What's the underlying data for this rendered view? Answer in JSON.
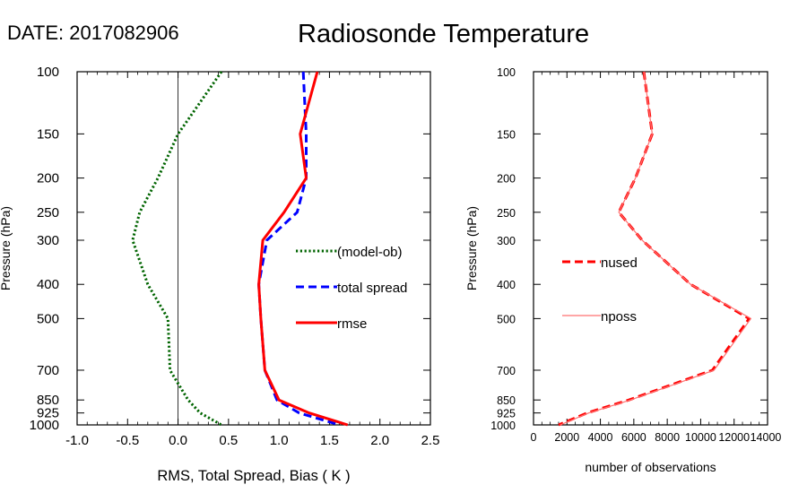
{
  "date_label": "DATE: 2017082906",
  "title": "Radiosonde Temperature",
  "chart_data": [
    {
      "type": "line",
      "xlabel": "RMS, Total Spread, Bias ( K )",
      "ylabel": "Pressure (hPa)",
      "xlim": [
        -1.0,
        2.5
      ],
      "ylim": [
        1000,
        100
      ],
      "y_scale": "log",
      "x_ticks": [
        "-1.0",
        "-0.5",
        "0.0",
        "0.5",
        "1.0",
        "1.5",
        "2.0",
        "2.5"
      ],
      "y_ticks": [
        "100",
        "150",
        "200",
        "250",
        "300",
        "400",
        "500",
        "700",
        "850",
        "925",
        "1000"
      ],
      "zero_line": true,
      "legend_position": "center-right",
      "series": [
        {
          "name": "(model-ob)",
          "color": "#006400",
          "style": "dotted",
          "points": [
            [
              0.43,
              100
            ],
            [
              0.0,
              150
            ],
            [
              -0.2,
              200
            ],
            [
              -0.38,
              250
            ],
            [
              -0.45,
              300
            ],
            [
              -0.3,
              400
            ],
            [
              -0.1,
              500
            ],
            [
              -0.08,
              700
            ],
            [
              0.1,
              850
            ],
            [
              0.22,
              925
            ],
            [
              0.43,
              1000
            ]
          ]
        },
        {
          "name": "total spread",
          "color": "#0000ff",
          "style": "dashed",
          "points": [
            [
              1.24,
              100
            ],
            [
              1.27,
              150
            ],
            [
              1.27,
              200
            ],
            [
              1.18,
              250
            ],
            [
              0.88,
              300
            ],
            [
              0.8,
              400
            ],
            [
              0.82,
              500
            ],
            [
              0.86,
              700
            ],
            [
              0.98,
              850
            ],
            [
              1.2,
              925
            ],
            [
              1.6,
              1000
            ]
          ]
        },
        {
          "name": "rmse",
          "color": "#ff0000",
          "style": "solid",
          "points": [
            [
              1.38,
              100
            ],
            [
              1.21,
              150
            ],
            [
              1.27,
              200
            ],
            [
              1.05,
              250
            ],
            [
              0.84,
              300
            ],
            [
              0.8,
              400
            ],
            [
              0.82,
              500
            ],
            [
              0.86,
              700
            ],
            [
              1.0,
              850
            ],
            [
              1.3,
              925
            ],
            [
              1.68,
              1000
            ]
          ]
        }
      ]
    },
    {
      "type": "line",
      "xlabel": "number of observations",
      "ylabel": "Pressure (hPa)",
      "xlim": [
        0,
        14000
      ],
      "ylim": [
        1000,
        100
      ],
      "y_scale": "log",
      "x_ticks": [
        "0",
        "2000",
        "4000",
        "6000",
        "8000",
        "10000",
        "12000",
        "14000"
      ],
      "y_ticks": [
        "100",
        "150",
        "200",
        "250",
        "300",
        "400",
        "500",
        "700",
        "850",
        "925",
        "1000"
      ],
      "legend_position": "center-left",
      "series": [
        {
          "name": "nused",
          "color": "#ff0000",
          "style": "dashed",
          "points": [
            [
              6600,
              100
            ],
            [
              7100,
              150
            ],
            [
              6100,
              200
            ],
            [
              5100,
              250
            ],
            [
              6500,
              300
            ],
            [
              9400,
              400
            ],
            [
              12900,
              500
            ],
            [
              10700,
              700
            ],
            [
              5700,
              850
            ],
            [
              3200,
              925
            ],
            [
              1500,
              1000
            ]
          ]
        },
        {
          "name": "nposs",
          "color": "#ff7070",
          "style": "solid",
          "points": [
            [
              6600,
              100
            ],
            [
              7100,
              150
            ],
            [
              6100,
              200
            ],
            [
              5100,
              250
            ],
            [
              6500,
              300
            ],
            [
              9400,
              400
            ],
            [
              13000,
              500
            ],
            [
              10800,
              700
            ],
            [
              5800,
              850
            ],
            [
              3300,
              925
            ],
            [
              1600,
              1000
            ]
          ]
        }
      ]
    }
  ]
}
